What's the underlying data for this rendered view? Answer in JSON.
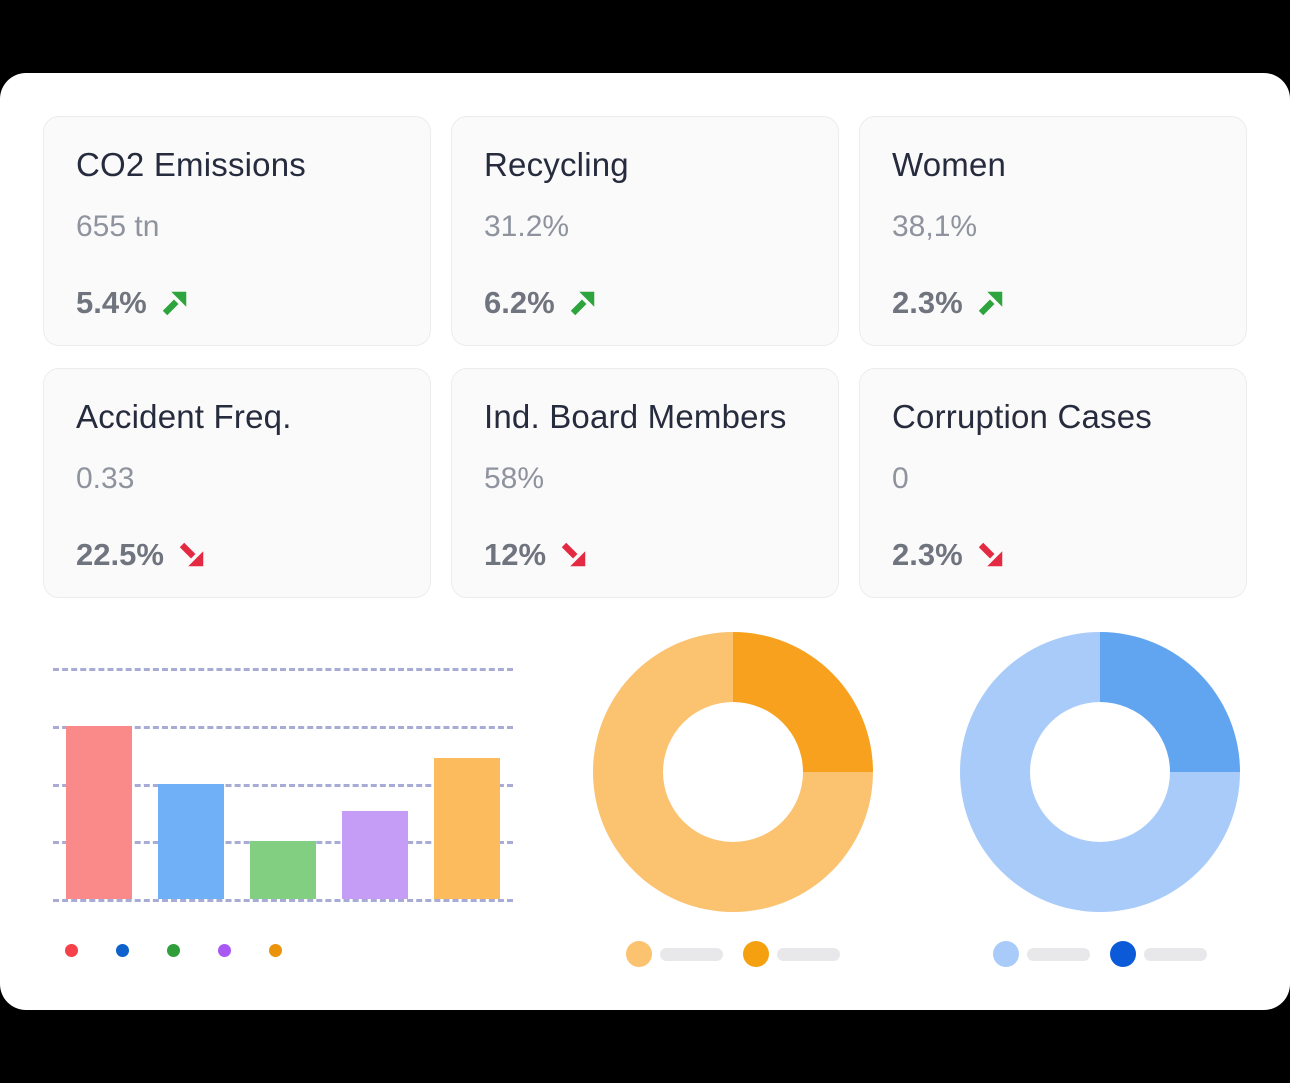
{
  "theme": {
    "page_bg": "#000000",
    "panel_bg": "#ffffff",
    "card_bg": "#fafafa",
    "card_border": "#ececef",
    "title_color": "#262b3d",
    "value_color": "#8f939e",
    "delta_color": "#6f747e",
    "up_color": "#2ea43d",
    "down_color": "#e42a43",
    "gridline_color": "#a7abd5",
    "legend_pill_color": "#e8e8ea"
  },
  "kpi_cards": [
    {
      "title": "CO2 Emissions",
      "value": "655 tn",
      "delta": "5.4%",
      "trend": "up"
    },
    {
      "title": "Recycling",
      "value": "31.2%",
      "delta": "6.2%",
      "trend": "up"
    },
    {
      "title": "Women",
      "value": "38,1%",
      "delta": "2.3%",
      "trend": "up"
    },
    {
      "title": "Accident Freq.",
      "value": "0.33",
      "delta": "22.5%",
      "trend": "down"
    },
    {
      "title": "Ind. Board Members",
      "value": "58%",
      "delta": "12%",
      "trend": "down"
    },
    {
      "title": "Corruption Cases",
      "value": "0",
      "delta": "2.3%",
      "trend": "down"
    }
  ],
  "chart_data": [
    {
      "type": "bar",
      "title": "",
      "categories": [
        "",
        "",
        "",
        "",
        ""
      ],
      "values": [
        3,
        2,
        1,
        1.52,
        2.45
      ],
      "ylim": [
        0,
        4
      ],
      "y_unit": "gridline steps (no axis labels shown)",
      "grid": "5 horizontal dashed gridlines, no axis tick labels",
      "bar_colors": [
        "#fa8a8a",
        "#6fb0f6",
        "#83cf81",
        "#c59cf6",
        "#fcbc5e"
      ],
      "legend_colors": [
        "#f6404a",
        "#0f61cc",
        "#309e3a",
        "#a958f3",
        "#ea930b"
      ],
      "legend_position": "bottom",
      "legend_labels": [
        "",
        "",
        "",
        "",
        ""
      ]
    },
    {
      "type": "pie",
      "subtype": "donut",
      "title": "",
      "start_angle_deg": 0,
      "slices": [
        {
          "label": "",
          "value": 25,
          "color": "#f7a11e"
        },
        {
          "label": "",
          "value": 75,
          "color": "#fbc270"
        }
      ],
      "legend_position": "bottom",
      "legend": [
        {
          "label": "",
          "color": "#fbc270"
        },
        {
          "label": "",
          "color": "#f5a00f"
        }
      ]
    },
    {
      "type": "pie",
      "subtype": "donut",
      "title": "",
      "start_angle_deg": 0,
      "slices": [
        {
          "label": "",
          "value": 25,
          "color": "#61a5f1"
        },
        {
          "label": "",
          "value": 75,
          "color": "#a9cbf9"
        }
      ],
      "legend_position": "bottom",
      "legend": [
        {
          "label": "",
          "color": "#a9cbf9"
        },
        {
          "label": "",
          "color": "#0b5ad7"
        }
      ]
    }
  ]
}
